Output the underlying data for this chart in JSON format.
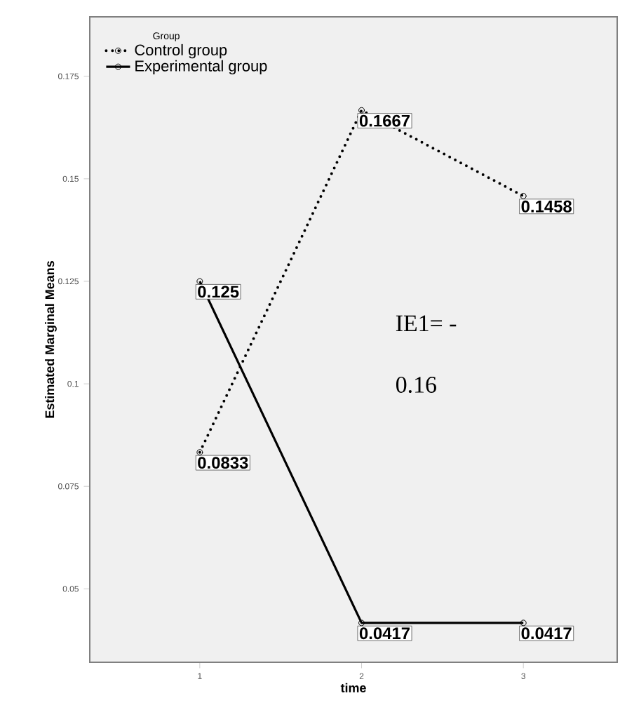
{
  "chart_data": {
    "type": "line",
    "xlabel": "time",
    "ylabel": "Estimated Marginal Means",
    "legend_title": "Group",
    "x": [
      1,
      2,
      3
    ],
    "series": [
      {
        "name": "Control group",
        "color": "#000000",
        "line_style": "dotted",
        "values": [
          0.0833,
          0.1667,
          0.1458
        ]
      },
      {
        "name": "Experimental group",
        "color": "#000000",
        "line_style": "solid",
        "values": [
          0.125,
          0.0417,
          0.0417
        ]
      }
    ],
    "xlim": [
      0.32,
      3.58
    ],
    "ylim": [
      0.0321,
      0.1895
    ],
    "xticks": [
      1,
      2,
      3
    ],
    "yticks": [
      0.05,
      0.075,
      0.1,
      0.125,
      0.15,
      0.175
    ],
    "data_labels": true,
    "legend": "top left",
    "marker": "circle",
    "grid": false,
    "annotations": [
      "IE1= -",
      "0.16"
    ]
  }
}
